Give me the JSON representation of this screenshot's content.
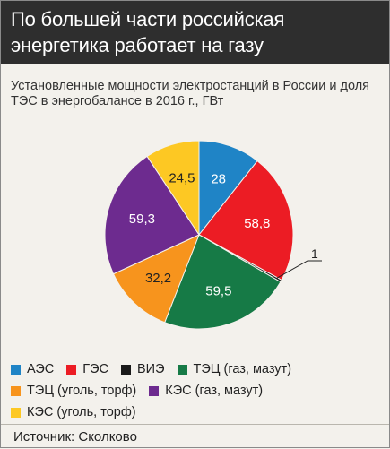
{
  "header": {
    "title": "По большей части российская энергетика работает на газу"
  },
  "subtitle": "Установленные мощности электростанций в России и доля ТЭС в энергобалансе в 2016 г., ГВт",
  "source": "Источник: Сколково",
  "chart_data": {
    "type": "pie",
    "title": "Установленные мощности электростанций в России и доля ТЭС в энергобалансе в 2016 г., ГВт",
    "slices": [
      {
        "name": "АЭС",
        "value": 28,
        "label": "28",
        "color": "#1f84c6",
        "label_color": "#ffffff"
      },
      {
        "name": "ГЭС",
        "value": 58.8,
        "label": "58,8",
        "color": "#ec1c24",
        "label_color": "#ffffff"
      },
      {
        "name": "ВИЭ",
        "value": 1,
        "label": "1",
        "color": "#1a1a1a",
        "label_color": "#222222"
      },
      {
        "name": "ТЭЦ (газ, мазут)",
        "value": 59.5,
        "label": "59,5",
        "color": "#167a46",
        "label_color": "#ffffff"
      },
      {
        "name": "ТЭЦ (уголь, торф)",
        "value": 32.2,
        "label": "32,2",
        "color": "#f7941d",
        "label_color": "#222222"
      },
      {
        "name": "КЭС (газ, мазут)",
        "value": 59.3,
        "label": "59,3",
        "color": "#6d2b8f",
        "label_color": "#ffffff"
      },
      {
        "name": "КЭС (уголь, торф)",
        "value": 24.5,
        "label": "24,5",
        "color": "#fdc823",
        "label_color": "#222222"
      }
    ],
    "legend": [
      [
        "АЭС",
        "ГЭС",
        "ВИЭ",
        "ТЭЦ (газ, мазут)"
      ],
      [
        "ТЭЦ (уголь, торф)",
        "КЭС (газ, мазут)"
      ],
      [
        "КЭС (уголь, торф)"
      ]
    ],
    "legend_position": "bottom"
  }
}
